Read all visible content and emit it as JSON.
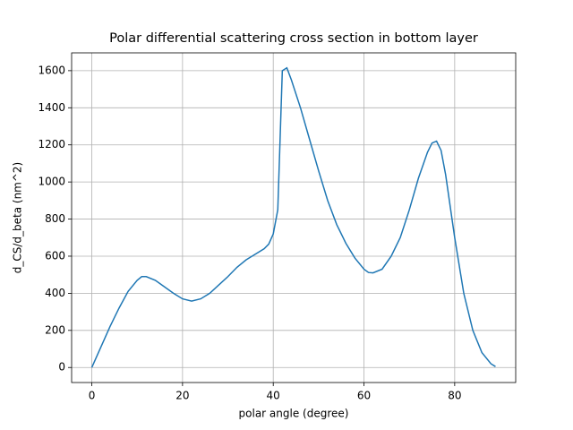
{
  "chart_data": {
    "type": "line",
    "title": "Polar differential scattering cross section in bottom layer",
    "x_label": "polar angle (degree)",
    "y_label": "d_CS/d_beta (nm^2)",
    "x": [
      0,
      2,
      4,
      6,
      8,
      10,
      11,
      12,
      14,
      16,
      18,
      20,
      22,
      24,
      26,
      28,
      30,
      32,
      34,
      36,
      38,
      39,
      40,
      41,
      42,
      43,
      44,
      46,
      48,
      50,
      52,
      54,
      56,
      58,
      60,
      61,
      62,
      64,
      66,
      68,
      70,
      72,
      74,
      75,
      76,
      77,
      78,
      80,
      82,
      84,
      86,
      88,
      89
    ],
    "series": [
      {
        "name": "d_CS/d_beta",
        "color": "#1f77b4",
        "values": [
          0,
          110,
          220,
          320,
          410,
          470,
          490,
          490,
          470,
          435,
          400,
          370,
          358,
          370,
          400,
          445,
          490,
          540,
          580,
          610,
          640,
          665,
          720,
          850,
          1600,
          1615,
          1550,
          1400,
          1230,
          1060,
          900,
          770,
          670,
          590,
          530,
          512,
          510,
          530,
          600,
          700,
          850,
          1020,
          1160,
          1210,
          1220,
          1170,
          1040,
          700,
          400,
          200,
          80,
          20,
          5
        ]
      }
    ],
    "xlim": [
      -4.45,
      93.45
    ],
    "ylim": [
      -81,
      1696
    ],
    "xticks": [
      0,
      20,
      40,
      60,
      80
    ],
    "yticks": [
      0,
      200,
      400,
      600,
      800,
      1000,
      1200,
      1400,
      1600
    ],
    "grid": true
  }
}
